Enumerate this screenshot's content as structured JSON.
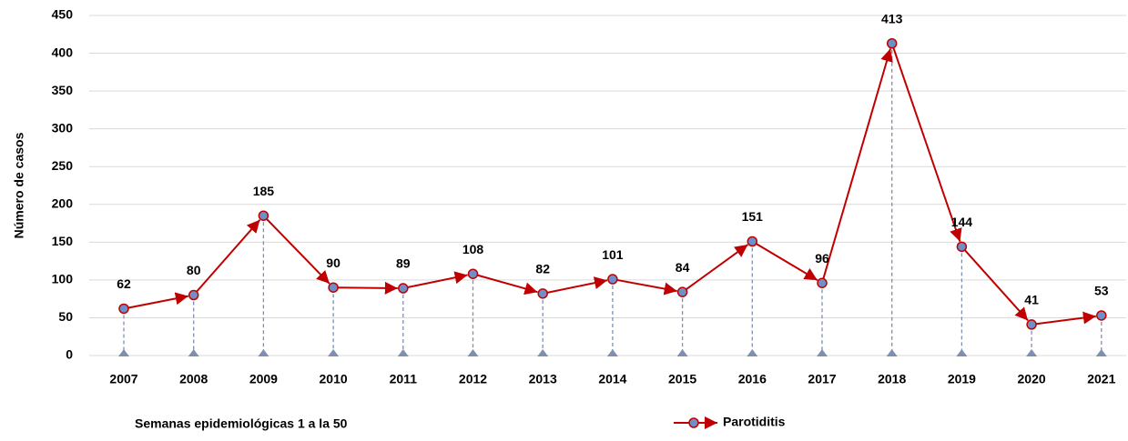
{
  "chart_data": {
    "type": "line",
    "ylabel": "Número de casos",
    "xlabel": "Semanas epidemiológicas 1 a la 50",
    "categories": [
      "2007",
      "2008",
      "2009",
      "2010",
      "2011",
      "2012",
      "2013",
      "2014",
      "2015",
      "2016",
      "2017",
      "2018",
      "2019",
      "2020",
      "2021"
    ],
    "series": [
      {
        "name": "Parotiditis",
        "color": "#c00000",
        "marker_color": "#6f8fc9",
        "values": [
          62,
          80,
          185,
          90,
          89,
          108,
          82,
          101,
          84,
          151,
          96,
          413,
          144,
          41,
          53
        ]
      }
    ],
    "ylim": [
      0,
      450
    ],
    "yticks": [
      0,
      50,
      100,
      150,
      200,
      250,
      300,
      350,
      400,
      450
    ],
    "grid": true,
    "legend": "bottom"
  }
}
